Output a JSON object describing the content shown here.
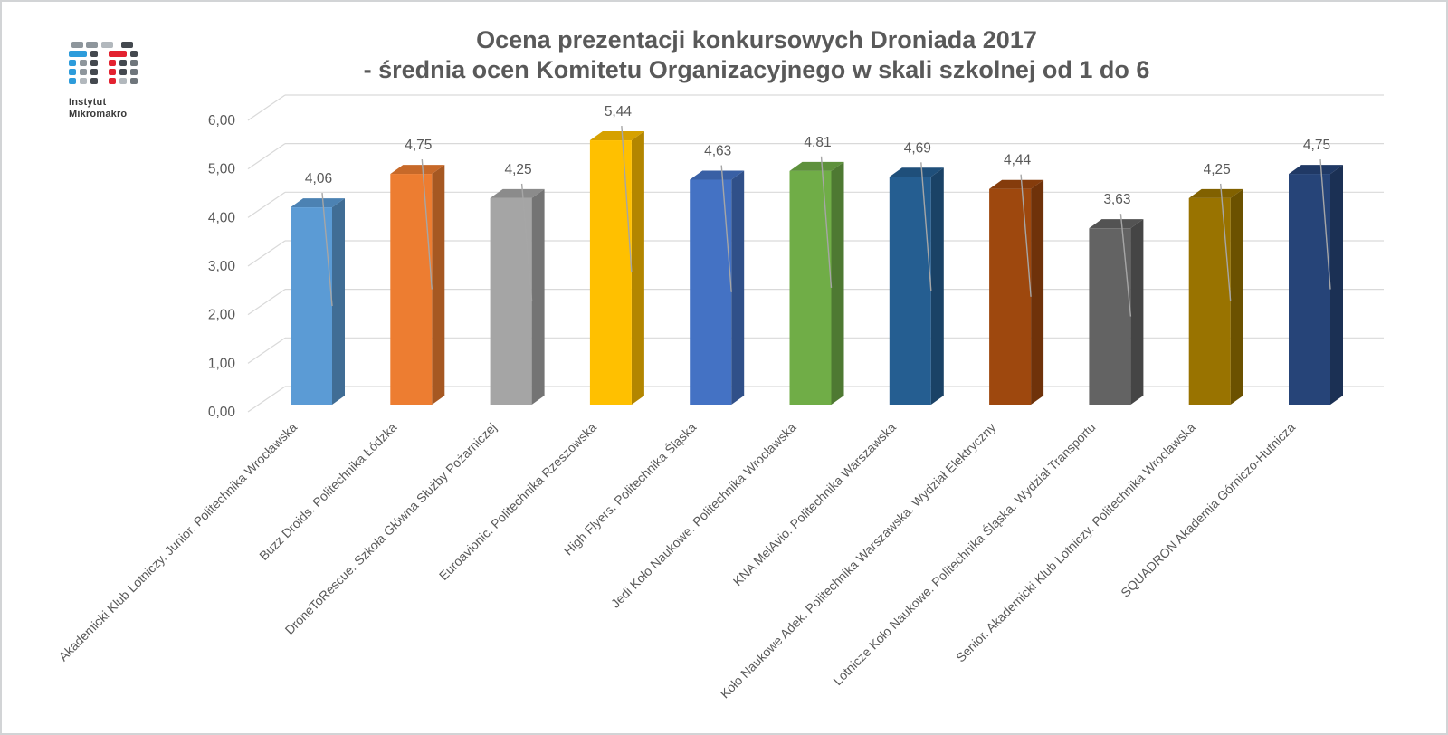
{
  "page": {
    "border_color": "#D2D4D6",
    "background": "#FFFFFF"
  },
  "logo": {
    "line1": "Instytut",
    "line2": "Mikromakro",
    "colors": {
      "blue": "#2D9CDB",
      "red": "#E32230",
      "dark": "#44494F",
      "gray": "#8E969C",
      "light_gray": "#B2B8BD",
      "mid_gray": "#6F767C"
    }
  },
  "chart_data": {
    "type": "bar",
    "style": "3d-column",
    "title": "Ocena prezentacji konkursowych Droniada 2017",
    "subtitle": "- średnia ocen Komitetu Organizacyjnego w skali szkolnej od 1 do 6",
    "xlabel": "",
    "ylabel": "",
    "ylim": [
      0,
      6
    ],
    "grid": true,
    "legend": "none",
    "gridline_color": "#D9D9D9",
    "leader_line_color": "#A6A6A6",
    "label_color": "#595959",
    "y_ticks": [
      "0,00",
      "1,00",
      "2,00",
      "3,00",
      "4,00",
      "5,00",
      "6,00"
    ],
    "categories": [
      "Akademicki Klub Lotniczy. Junior. Politechnika Wrocławska",
      "Buzz Droids. Politechnika Łódzka",
      "DroneToRescue. Szkoła Główna Służby Pożarniczej",
      "Euroavionic. Politechnika Rzeszowska",
      "High Flyers. Politechnika Śląska",
      "Jedi Koło Naukowe. Politechnika Wrocławska",
      "KNA MelAvio. Politechnika Warszawska",
      "Koło Naukowe Adek. Politechnika Warszawska. Wydział Elektryczny",
      "Lotnicze Koło Naukowe. Politechnika Śląska. Wydział Transportu",
      "Senior. Akademicki Klub Lotniczy. Politechnika Wrocławska",
      "SQUADRON Akademia Górniczo-Hutnicza"
    ],
    "values": [
      4.06,
      4.75,
      4.25,
      5.44,
      4.63,
      4.81,
      4.69,
      4.44,
      3.63,
      4.25,
      4.75
    ],
    "value_labels": [
      "4,06",
      "4,75",
      "4,25",
      "5,44",
      "4,63",
      "4,81",
      "4,69",
      "4,44",
      "3,63",
      "4,25",
      "4,75"
    ],
    "bar_colors": [
      {
        "front": "#5B9BD5",
        "top": "#4C82B3",
        "side": "#406D95"
      },
      {
        "front": "#ED7D31",
        "top": "#C76929",
        "side": "#A65822"
      },
      {
        "front": "#A5A5A5",
        "top": "#8B8B8B",
        "side": "#747474"
      },
      {
        "front": "#FFC000",
        "top": "#D6A100",
        "side": "#B38600"
      },
      {
        "front": "#4472C4",
        "top": "#3960A5",
        "side": "#305089"
      },
      {
        "front": "#70AD47",
        "top": "#5E913C",
        "side": "#4E7932"
      },
      {
        "front": "#255E91",
        "top": "#1F4F7A",
        "side": "#1A4266"
      },
      {
        "front": "#9E480E",
        "top": "#853C0C",
        "side": "#6F320A"
      },
      {
        "front": "#636363",
        "top": "#535353",
        "side": "#454545"
      },
      {
        "front": "#997300",
        "top": "#816100",
        "side": "#6B5100"
      },
      {
        "front": "#264478",
        "top": "#203965",
        "side": "#1B3054"
      }
    ]
  }
}
